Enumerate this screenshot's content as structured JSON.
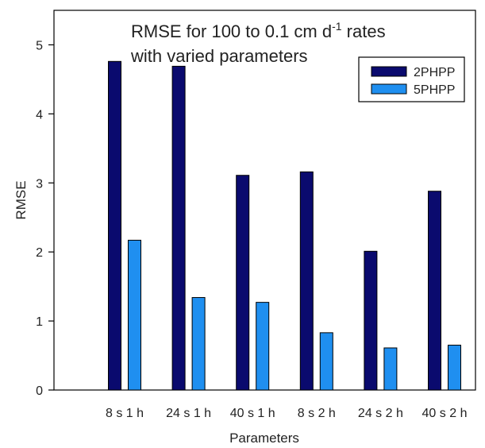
{
  "chart_data": {
    "type": "bar",
    "title_lines": [
      "RMSE for 100 to 0.1 cm d",
      "-1",
      " rates",
      "with varied parameters"
    ],
    "xlabel": "Parameters",
    "ylabel": "RMSE",
    "categories": [
      "8 s 1 h",
      "24 s 1 h",
      "40 s 1 h",
      "8 s 2 h",
      "24 s 2 h",
      "40 s 2 h"
    ],
    "series": [
      {
        "name": "2PHPP",
        "color": "#0a0a6e",
        "values": [
          4.76,
          4.69,
          3.11,
          3.16,
          2.01,
          2.88
        ]
      },
      {
        "name": "5PHPP",
        "color": "#1f8ff0",
        "values": [
          2.17,
          1.34,
          1.27,
          0.83,
          0.61,
          0.65
        ]
      }
    ],
    "ylim": [
      0,
      5.5
    ],
    "yticks": [
      0,
      1,
      2,
      3,
      4,
      5
    ],
    "legend_position": "top-right",
    "grid": false
  }
}
